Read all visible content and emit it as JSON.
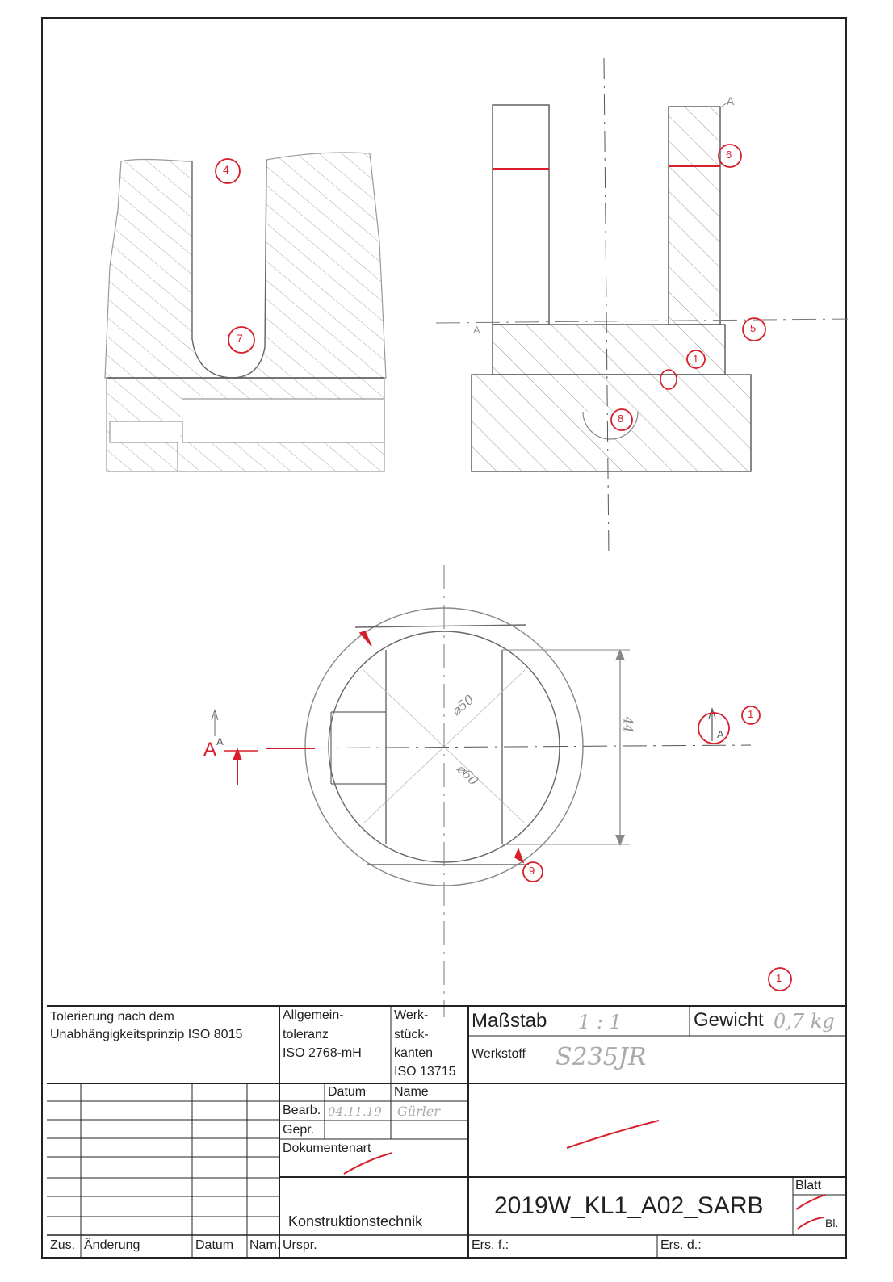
{
  "markers": {
    "m1a": "1",
    "m1b": "1",
    "m1c": "1",
    "m4": "4",
    "m5": "5",
    "m6": "6",
    "m7": "7",
    "m8": "8",
    "m9": "9"
  },
  "section_labels": {
    "cut_a": "A",
    "cut_a_superscript": "A",
    "view_a_front": "A",
    "view_a_top": "A",
    "view_a_detail": "A"
  },
  "dimensions": {
    "d50": "⌀50",
    "d60": "⌀60",
    "h44": "44"
  },
  "title_block": {
    "tolerancing": [
      "Tolerierung nach dem",
      "Unabhängigkeitsprinzip ISO 8015"
    ],
    "general_tolerance": [
      "Allgemein-",
      "toleranz",
      "ISO 2768-mH"
    ],
    "workpiece_edges": [
      "Werk-",
      "stück-",
      "kanten",
      "ISO 13715"
    ],
    "scale_label": "Maßstab",
    "scale_value": "1 : 1",
    "weight_label": "Gewicht",
    "weight_value": "0,7 kg",
    "material_label": "Werkstoff",
    "material_value": "S235JR",
    "date_header": "Datum",
    "name_header": "Name",
    "drawn_label": "Bearb.",
    "drawn_date": "04.11.19",
    "drawn_name": "Gürler",
    "checked_label": "Gepr.",
    "doc_type_label": "Dokumentenart",
    "department": "Konstruktionstechnik",
    "drawing_number": "2019W_KL1_A02_SARB",
    "sheet_label": "Blatt",
    "sheets_label": "Bl.",
    "revision_col": "Zus.",
    "change_col": "Änderung",
    "date_col": "Datum",
    "name_col": "Nam.",
    "origin_col": "Urspr.",
    "replacement_for": "Ers. f.:",
    "replaced_by": "Ers. d.:"
  }
}
